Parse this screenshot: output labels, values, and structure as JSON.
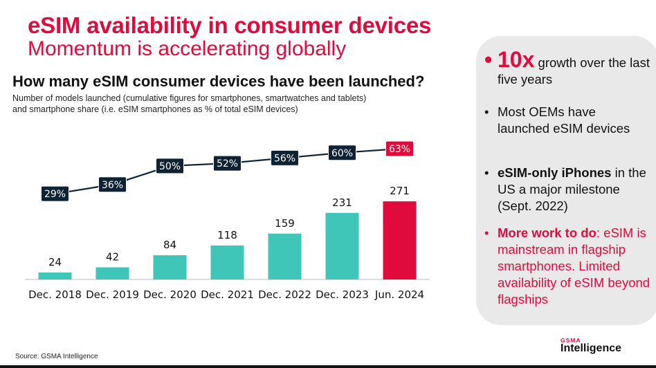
{
  "header": {
    "title": "eSIM availability in consumer devices",
    "subtitle": "Momentum is accelerating globally",
    "question": "How many eSIM consumer devices have been launched?",
    "desc_line1": "Number of models launched (cumulative figures for smartphones, smartwatches and tablets)",
    "desc_line2": "and smartphone share (i.e. eSIM smartphones as % of total eSIM devices)"
  },
  "chart_data": {
    "type": "bar",
    "title": "How many eSIM consumer devices have been launched?",
    "categories": [
      "Dec. 2018",
      "Dec. 2019",
      "Dec. 2020",
      "Dec. 2021",
      "Dec. 2022",
      "Dec. 2023",
      "Jun. 2024"
    ],
    "series": [
      {
        "name": "Number of models launched (cumulative)",
        "type": "bar",
        "values": [
          24,
          42,
          84,
          118,
          159,
          231,
          271
        ]
      },
      {
        "name": "Smartphone share",
        "type": "line",
        "values": [
          29,
          36,
          50,
          52,
          56,
          60,
          63
        ],
        "labels": [
          "29%",
          "36%",
          "50%",
          "52%",
          "56%",
          "60%",
          "63%"
        ]
      }
    ],
    "xlabel": "",
    "ylabel": "",
    "ylim": [
      0,
      300
    ],
    "line_ylim": [
      15,
      75
    ],
    "colors": {
      "bar": "#3fc6b8",
      "highlight_bar": "#e10a3c",
      "line": "#0e2233",
      "line_label_bg": "#0e2233",
      "highlight_label_bg": "#e10a3c"
    }
  },
  "panel": {
    "b1_big": "10x",
    "b1_rest": "growth over the last five years",
    "b2": "Most OEMs have launched eSIM devices",
    "b3_bold": "eSIM-only iPhones",
    "b3_rest": "in the US a major milestone (Sept. 2022)",
    "b4_bold": "More work to do",
    "b4_rest": "eSIM is mainstream in flagship smartphones. Limited availability of eSIM beyond flagships",
    "bullet_char": "•",
    "colon": ":"
  },
  "footer": {
    "source": "Source: GSMA Intelligence",
    "logo_top": "GSMA",
    "logo_main": "Intelligence"
  }
}
